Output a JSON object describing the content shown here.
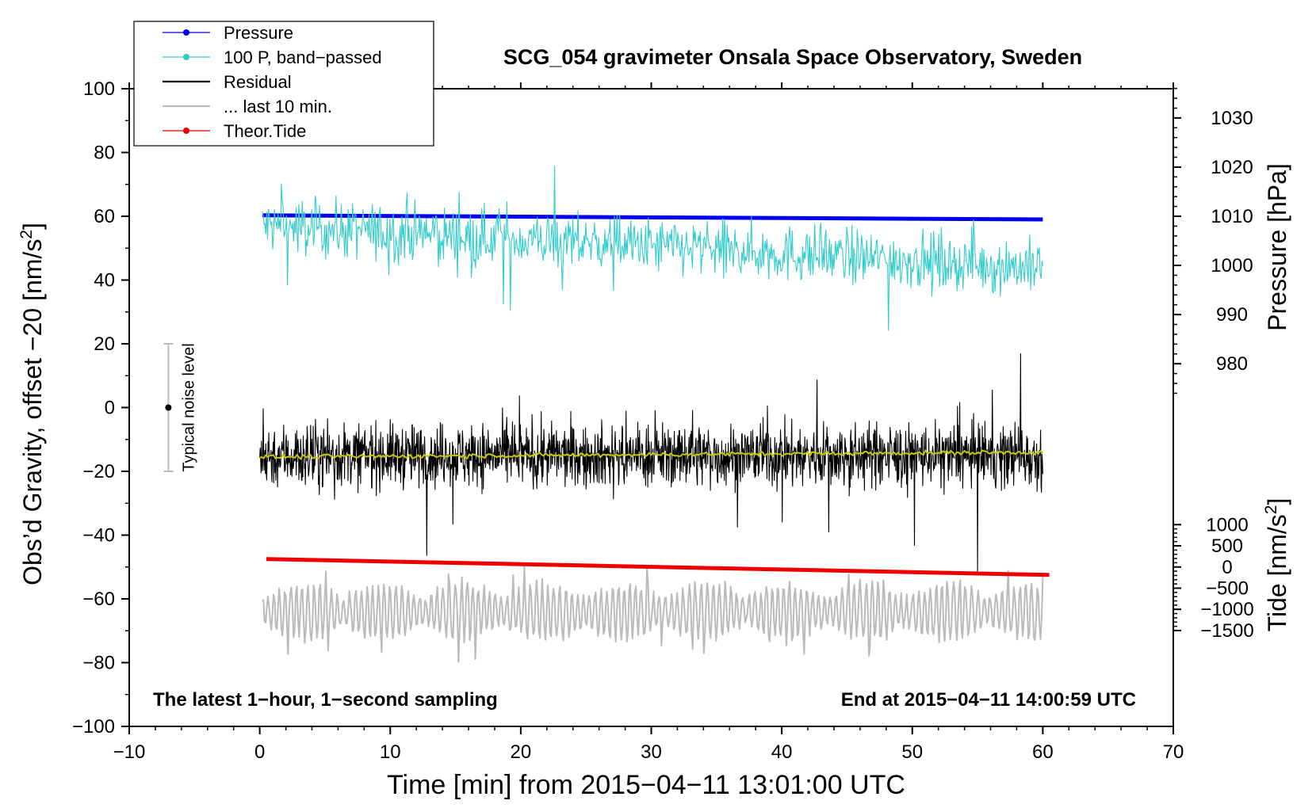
{
  "chart_data": {
    "type": "line",
    "title": "SCG_054 gravimeter Onsala Space Observatory, Sweden",
    "xlabel": "Time [min] from 2015−04−11 13:01:00 UTC",
    "ylabel_left": "Obs’d Gravity, offset −20 [nm/s",
    "ylabel_left_sup": "2",
    "ylabel_left_tail": "]",
    "ylabel_pressure": "Pressure [hPa]",
    "ylabel_tide": "Tide [nm/s",
    "ylabel_tide_sup": "2",
    "ylabel_tide_tail": "]",
    "xlim": [
      -10,
      70
    ],
    "ylim": [
      -100,
      100
    ],
    "x_ticks": [
      {
        "v": -10,
        "label": "−10"
      },
      {
        "v": 0,
        "label": "0"
      },
      {
        "v": 10,
        "label": "10"
      },
      {
        "v": 20,
        "label": "20"
      },
      {
        "v": 30,
        "label": "30"
      },
      {
        "v": 40,
        "label": "40"
      },
      {
        "v": 50,
        "label": "50"
      },
      {
        "v": 60,
        "label": "60"
      },
      {
        "v": 70,
        "label": "70"
      }
    ],
    "y_ticks_left": [
      {
        "v": 100,
        "label": "100"
      },
      {
        "v": 80,
        "label": "80"
      },
      {
        "v": 60,
        "label": "60"
      },
      {
        "v": 40,
        "label": "40"
      },
      {
        "v": 20,
        "label": "20"
      },
      {
        "v": 0,
        "label": "0"
      },
      {
        "v": -20,
        "label": "−20"
      },
      {
        "v": -40,
        "label": "−40"
      },
      {
        "v": -60,
        "label": "−60"
      },
      {
        "v": -80,
        "label": "−80"
      },
      {
        "v": -100,
        "label": "−100"
      }
    ],
    "pressure_axis": {
      "ticks": [
        {
          "v": 1030,
          "label": "1030"
        },
        {
          "v": 1020,
          "label": "1020"
        },
        {
          "v": 1010,
          "label": "1010"
        },
        {
          "v": 1000,
          "label": "1000"
        },
        {
          "v": 990,
          "label": "990"
        },
        {
          "v": 980,
          "label": "980"
        }
      ],
      "ref_hpa": 1010,
      "ref_gravity": 60,
      "hpa_per_gravity_unit": 0.6486
    },
    "tide_axis": {
      "ticks": [
        {
          "v": 1000,
          "label": "1000"
        },
        {
          "v": 500,
          "label": "500"
        },
        {
          "v": 0,
          "label": "0"
        },
        {
          "v": -500,
          "label": "−500"
        },
        {
          "v": -1000,
          "label": "−1000"
        },
        {
          "v": -1500,
          "label": "−1500"
        }
      ],
      "ref_tide": 0,
      "ref_gravity": -50,
      "tide_per_gravity_unit": 75.3
    },
    "series": [
      {
        "name": "Pressure",
        "color": "#0000ee",
        "x_range": [
          0.2,
          60
        ],
        "y_start": 60.3,
        "y_end": 59.0,
        "kind": "thick-line"
      },
      {
        "name": "100 P, band−passed",
        "color": "#33cccc",
        "x_range": [
          0.2,
          60
        ],
        "y_start": 57,
        "y_end": 44,
        "amplitude": 9,
        "kind": "noise"
      },
      {
        "name": "Residual",
        "color": "#000000",
        "x_range": [
          0,
          60
        ],
        "y_mean": -15,
        "amplitude": 10,
        "kind": "noise"
      },
      {
        "name": "Running mean",
        "color": "#c8c800",
        "x_range": [
          0,
          60
        ],
        "y_start": -15.5,
        "y_end": -14,
        "kind": "smooth"
      },
      {
        "name": "... last 10 min.",
        "color": "#bbbbbb",
        "x_range": [
          0.2,
          60
        ],
        "y_mean": -64,
        "amplitude": 9,
        "kind": "wave"
      },
      {
        "name": "Theor.Tide",
        "color": "#ee0000",
        "x_range": [
          0.5,
          60.5
        ],
        "y_start": -47.5,
        "y_end": -52.5,
        "kind": "thick-line"
      }
    ],
    "noise_bar": {
      "x": -7,
      "y_center": 0,
      "y_half": 20,
      "label": "Typical noise level"
    },
    "annotation_left": "The latest 1−hour, 1−second sampling",
    "annotation_right": "End at 2015−04−11 14:00:59 UTC",
    "legend": {
      "position": "top-left",
      "entries": [
        {
          "label": "Pressure",
          "color": "#0000ee",
          "marker": true
        },
        {
          "label": "100 P, band−passed",
          "color": "#33cccc",
          "marker": true
        },
        {
          "label": "Residual",
          "color": "#000000",
          "marker": false
        },
        {
          "label": "... last 10 min.",
          "color": "#bbbbbb",
          "marker": false
        },
        {
          "label": "Theor.Tide",
          "color": "#ee0000",
          "marker": true
        }
      ]
    }
  }
}
